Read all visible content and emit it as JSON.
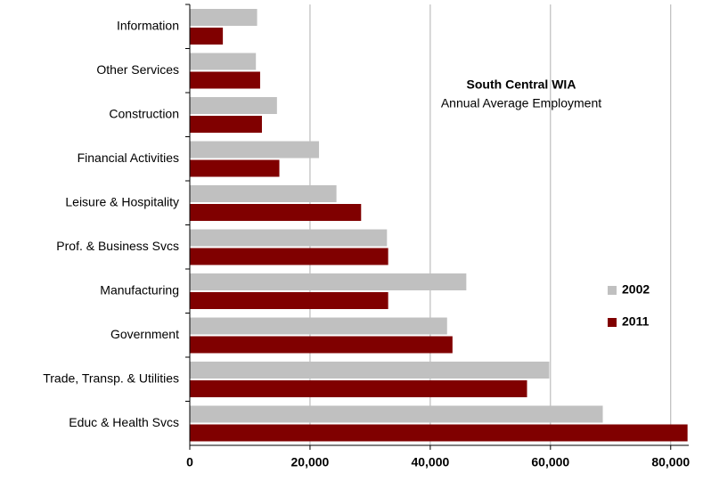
{
  "chart_data": {
    "type": "hbar",
    "annotation_title": "South Central WIA",
    "annotation_subtitle": "Annual Average Employment",
    "categories": [
      "Information",
      "Other Services",
      "Construction",
      "Financial Activities",
      "Leisure & Hospitality",
      "Prof. & Business Svcs",
      "Manufacturing",
      "Government",
      "Trade, Transp. & Utilities",
      "Educ & Health Svcs"
    ],
    "series": [
      {
        "name": "2002",
        "color": "#c0c0c0",
        "values": [
          11200,
          11000,
          14500,
          21500,
          24400,
          32800,
          46000,
          42800,
          59800,
          68700
        ]
      },
      {
        "name": "2011",
        "color": "#800000",
        "values": [
          5500,
          11700,
          12000,
          14900,
          28500,
          33000,
          33000,
          43700,
          56100,
          82800
        ]
      }
    ],
    "xlim": [
      0,
      83000
    ],
    "xticks": [
      {
        "value": 0,
        "label": "0"
      },
      {
        "value": 20000,
        "label": "20,000"
      },
      {
        "value": 40000,
        "label": "40,000"
      },
      {
        "value": 60000,
        "label": "60,000"
      },
      {
        "value": 80000,
        "label": "80,000"
      }
    ],
    "grid": true,
    "legend": "right"
  }
}
